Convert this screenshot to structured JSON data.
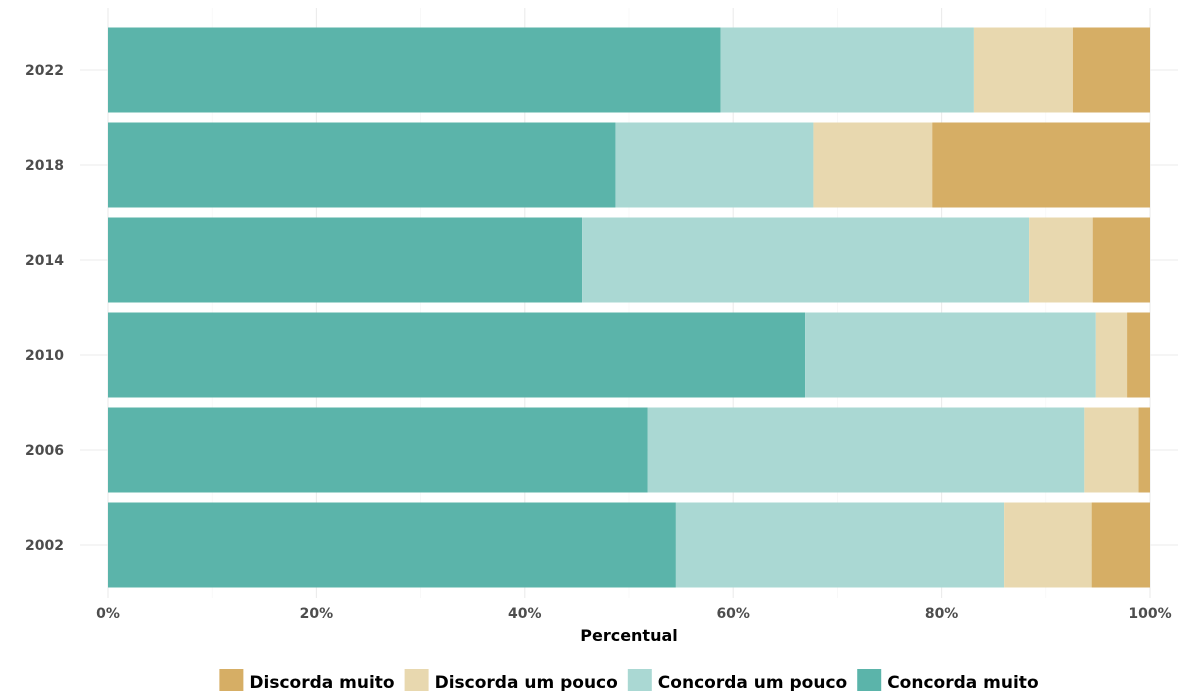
{
  "chart_data": {
    "type": "bar",
    "orientation": "horizontal",
    "stacked": true,
    "categories": [
      "2022",
      "2018",
      "2014",
      "2010",
      "2006",
      "2002"
    ],
    "series": [
      {
        "name": "Concorda muito",
        "color": "#5bb4aa",
        "values": [
          58.8,
          48.7,
          45.5,
          66.9,
          51.8,
          54.5
        ]
      },
      {
        "name": "Concorda um pouco",
        "color": "#aad8d3",
        "values": [
          24.3,
          19.0,
          42.9,
          27.9,
          41.9,
          31.5
        ]
      },
      {
        "name": "Discorda um pouco",
        "color": "#e8d8af",
        "values": [
          9.5,
          11.4,
          6.1,
          3.0,
          5.2,
          8.4
        ]
      },
      {
        "name": "Discorda muito",
        "color": "#d6ae65",
        "values": [
          7.4,
          20.9,
          5.5,
          2.2,
          1.1,
          5.6
        ]
      }
    ],
    "legend_order": [
      "Discorda muito",
      "Discorda um pouco",
      "Concorda um pouco",
      "Concorda muito"
    ],
    "xlim": [
      0,
      100
    ],
    "x_ticks": [
      0,
      20,
      40,
      60,
      80,
      100
    ],
    "x_tick_labels": [
      "0%",
      "20%",
      "40%",
      "60%",
      "80%",
      "100%"
    ],
    "xlabel": "Percentual",
    "ylabel": "",
    "title": "",
    "grid": true,
    "legend_position": "bottom"
  }
}
